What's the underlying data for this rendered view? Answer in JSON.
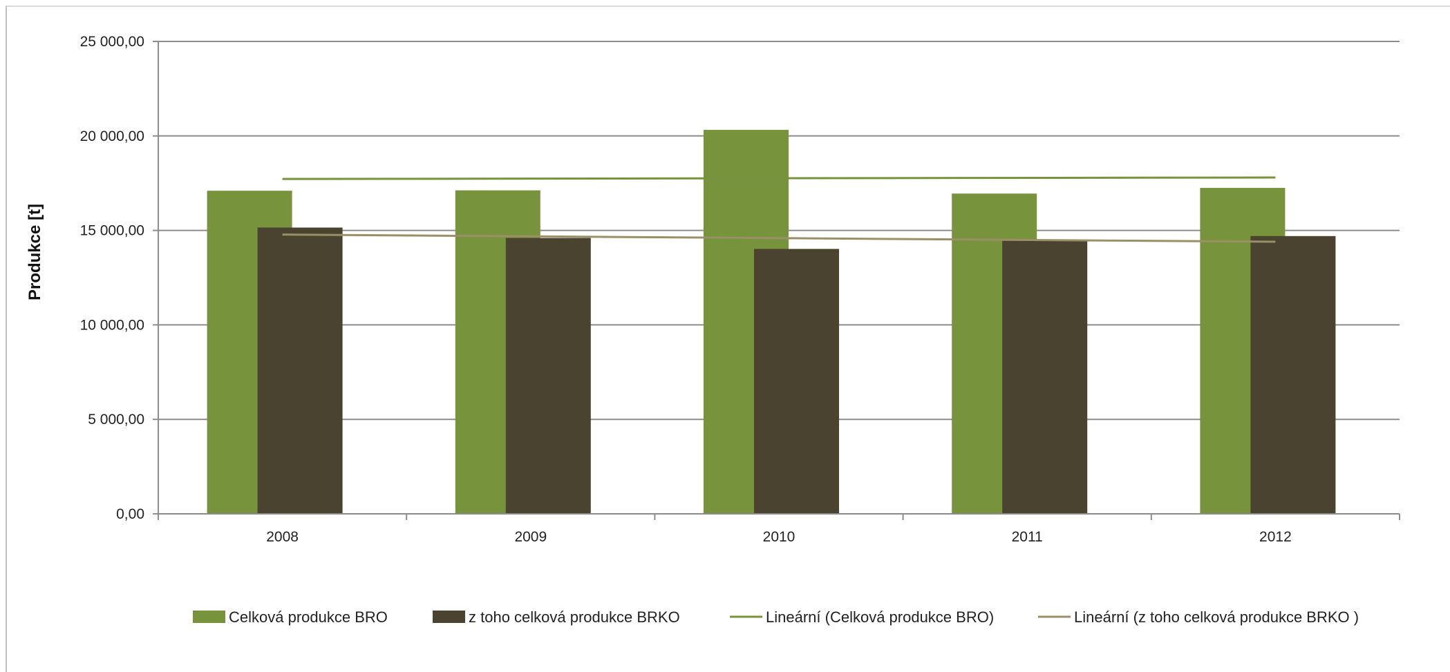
{
  "chart_data": {
    "type": "bar",
    "categories": [
      "2008",
      "2009",
      "2010",
      "2011",
      "2012"
    ],
    "series": [
      {
        "name": "Celková produkce BRO",
        "values": [
          17100,
          17120,
          20320,
          16950,
          17250
        ],
        "color": "#77933c"
      },
      {
        "name": "z toho celková produkce BRKO",
        "values": [
          15150,
          14600,
          14020,
          14450,
          14700
        ],
        "color": "#4a4330"
      }
    ],
    "trendlines": [
      {
        "name": "Lineární (Celková produkce BRO)",
        "kind": "linear",
        "start": 17720,
        "end": 17800,
        "color": "#77933c"
      },
      {
        "name": "Lineární (z toho celková produkce BRKO )",
        "kind": "linear",
        "start": 14780,
        "end": 14400,
        "color": "#9a8f66"
      }
    ],
    "title": "",
    "xlabel": "",
    "ylabel": "Produkce [t]",
    "ylim": [
      0,
      25000
    ],
    "yticks": [
      0,
      5000,
      10000,
      15000,
      20000,
      25000
    ],
    "ytick_labels": [
      "0,00",
      "5 000,00",
      "10 000,00",
      "15 000,00",
      "20 000,00",
      "25 000,00"
    ],
    "grid": true,
    "legend_position": "bottom"
  }
}
